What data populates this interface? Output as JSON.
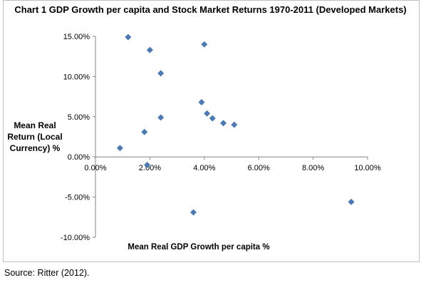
{
  "chart_data": {
    "type": "scatter",
    "title": "Chart 1 GDP Growth per capita and Stock Market Returns 1970-2011 (Developed Markets)",
    "xlabel": "Mean Real GDP Growth per capita %",
    "ylabel": [
      "Mean Real",
      "Return (Local",
      "Currency) %"
    ],
    "xlim": [
      0,
      10
    ],
    "ylim": [
      -10,
      15
    ],
    "x_ticks": [
      0,
      2,
      4,
      6,
      8,
      10
    ],
    "x_tick_labels": [
      "0.00%",
      "2.00%",
      "4.00%",
      "6.00%",
      "8.00%",
      "10.00%"
    ],
    "y_ticks": [
      15,
      10,
      5,
      0,
      -5,
      -10
    ],
    "y_tick_labels": [
      "15.00%",
      "10.00%",
      "5.00%",
      "0.00%",
      "-5.00%",
      "-10.00%"
    ],
    "marker_color": "#4a7ab8",
    "grid": false,
    "points": [
      {
        "x": 1.2,
        "y": 14.9
      },
      {
        "x": 4.0,
        "y": 14.0
      },
      {
        "x": 2.0,
        "y": 13.3
      },
      {
        "x": 2.4,
        "y": 10.4
      },
      {
        "x": 3.9,
        "y": 6.8
      },
      {
        "x": 4.1,
        "y": 5.4
      },
      {
        "x": 2.4,
        "y": 4.9
      },
      {
        "x": 4.3,
        "y": 4.8
      },
      {
        "x": 4.7,
        "y": 4.2
      },
      {
        "x": 5.1,
        "y": 4.0
      },
      {
        "x": 1.8,
        "y": 3.1
      },
      {
        "x": 0.9,
        "y": 1.1
      },
      {
        "x": 1.9,
        "y": -1.0
      },
      {
        "x": 3.6,
        "y": -6.9
      },
      {
        "x": 9.4,
        "y": -5.6
      }
    ]
  },
  "source": "Source: Ritter (2012)."
}
